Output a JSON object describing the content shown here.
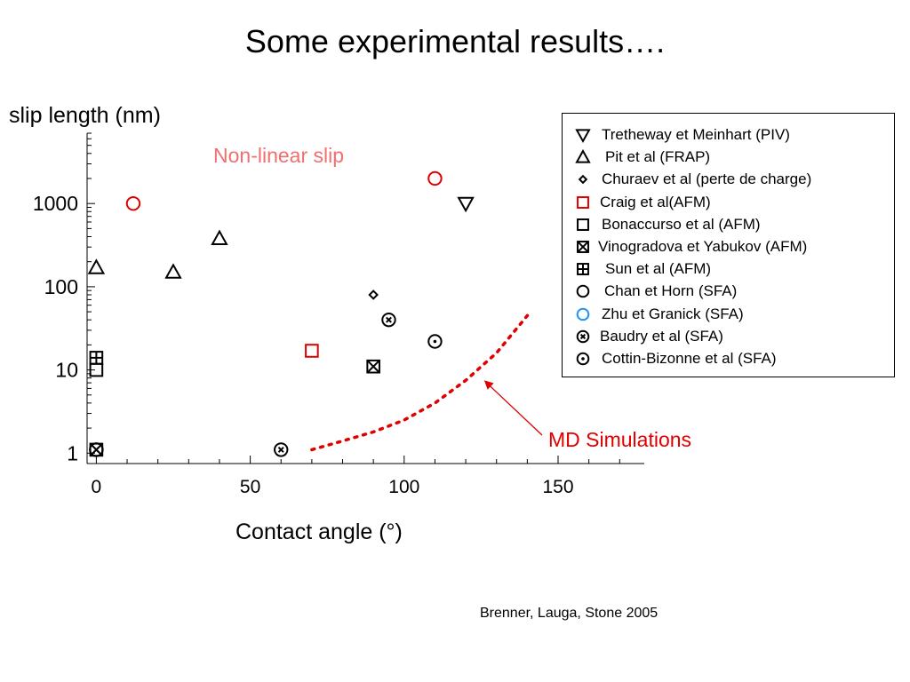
{
  "slide": {
    "title": "Some experimental results….",
    "citation": "Brenner, Lauga, Stone 2005"
  },
  "chart_data": {
    "type": "scatter",
    "xlabel": "Contact angle (°)",
    "ylabel": "slip length (nm)",
    "x_scale": "linear",
    "y_scale": "log",
    "xlim": [
      -3,
      178
    ],
    "ylim": [
      0.75,
      7000
    ],
    "x_ticks": [
      {
        "value": 0,
        "label": "0"
      },
      {
        "value": 50,
        "label": "50"
      },
      {
        "value": 100,
        "label": "100"
      },
      {
        "value": 150,
        "label": "150"
      }
    ],
    "y_ticks": [
      {
        "value": 1,
        "label": "1"
      },
      {
        "value": 10,
        "label": "10"
      },
      {
        "value": 100,
        "label": "100"
      },
      {
        "value": 1000,
        "label": "1000"
      }
    ],
    "grid": false,
    "legend_position": "right",
    "series": [
      {
        "name": "Tretheway et Meinhart (PIV)",
        "marker": "triangle-down",
        "color": "#000000",
        "points": [
          [
            120,
            1000
          ]
        ]
      },
      {
        "name": "Pit et al (FRAP)",
        "marker": "triangle-up",
        "color": "#000000",
        "points": [
          [
            0,
            170
          ],
          [
            25,
            150
          ],
          [
            40,
            380
          ]
        ]
      },
      {
        "name": "Churaev et al (perte de charge)",
        "marker": "diamond",
        "color": "#000000",
        "points": [
          [
            90,
            80
          ]
        ]
      },
      {
        "name": "Craig et al(AFM)",
        "marker": "square",
        "color": "#e00000",
        "points": [
          [
            70,
            17
          ]
        ]
      },
      {
        "name": "Bonaccurso et al (AFM)",
        "marker": "square",
        "color": "#000000",
        "points": [
          [
            0,
            10
          ]
        ]
      },
      {
        "name": "Vinogradova et Yabukov (AFM)",
        "marker": "square-x",
        "color": "#000000",
        "points": [
          [
            90,
            11
          ],
          [
            0,
            1.1
          ]
        ]
      },
      {
        "name": "Sun  et al (AFM)",
        "marker": "square-plus",
        "color": "#000000",
        "points": [
          [
            0,
            14
          ]
        ]
      },
      {
        "name": "Chan et Horn (SFA)",
        "marker": "circle",
        "color": "#000000",
        "points": [
          [
            0,
            1.1
          ]
        ]
      },
      {
        "name": "Zhu et Granick (SFA)",
        "marker": "circle",
        "color": "#1e90ff",
        "points": [
          [
            12,
            1000
          ],
          [
            110,
            2000
          ]
        ],
        "plotted_color": "#e00000"
      },
      {
        "name": "Baudry et al (SFA)",
        "marker": "circle-x",
        "color": "#000000",
        "points": [
          [
            95,
            40
          ],
          [
            60,
            1.1
          ],
          [
            0,
            1.1
          ]
        ]
      },
      {
        "name": "Cottin-Bizonne et al (SFA)",
        "marker": "circle-dot",
        "color": "#000000",
        "points": [
          [
            110,
            22
          ]
        ]
      }
    ],
    "md_simulations_curve": {
      "label": "MD Simulations",
      "color": "#e00000",
      "style": "dotted",
      "points": [
        [
          70,
          1.1
        ],
        [
          80,
          1.4
        ],
        [
          90,
          1.8
        ],
        [
          100,
          2.5
        ],
        [
          110,
          4
        ],
        [
          120,
          7.5
        ],
        [
          130,
          16
        ],
        [
          140,
          45
        ]
      ]
    },
    "annotations": [
      {
        "text": "Non-linear slip",
        "color": "#f07070"
      },
      {
        "text": "MD Simulations",
        "color": "#e00000",
        "arrow_to": [
          126,
          7.5
        ]
      }
    ]
  }
}
